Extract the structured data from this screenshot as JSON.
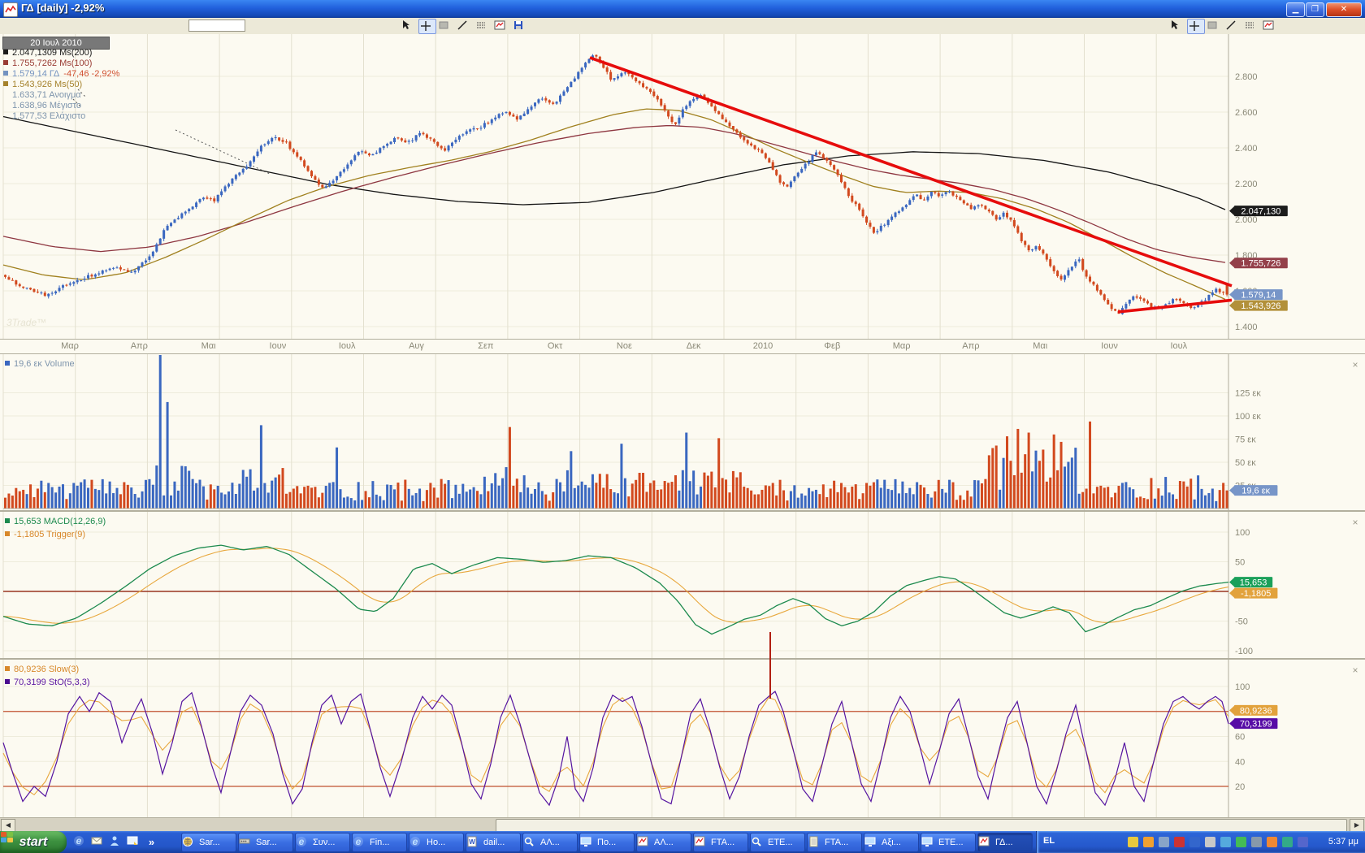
{
  "window": {
    "title": "ΓΔ [daily] -2,92%"
  },
  "toolbar": {
    "symbol_value": "",
    "tools_center": [
      "pointer",
      "crosshair",
      "region-select",
      "trendline",
      "horizontal-lines",
      "chart-window",
      "save"
    ],
    "tools_right": [
      "pointer",
      "crosshair",
      "region-select",
      "trendline",
      "horizontal-lines",
      "chart-window"
    ],
    "selected_tool": "crosshair"
  },
  "price_panel": {
    "date_tooltip": "20 Ιουλ 2010",
    "watermark": "3Trade™",
    "legend": [
      {
        "value": "2.047,1309",
        "label": "Ms(200)",
        "color": "#1c1c1c",
        "marker": "#1c1c1c"
      },
      {
        "value": "1.755,7262",
        "label": "Ms(100)",
        "color": "#9a3c34",
        "marker": "#9a3c34"
      },
      {
        "value": "1.579,14",
        "label": "ΓΔ",
        "change": "-47,46 -2,92%",
        "color": "#7493c0",
        "change_color": "#d05030",
        "marker": "#7493c0"
      },
      {
        "value": "1.543,926",
        "label": "Ms(50)",
        "color": "#a5822c",
        "marker": "#a5822c"
      },
      {
        "value": "1.633,71",
        "label": "Ανοιγμα",
        "color": "#7d94ac",
        "marker": ""
      },
      {
        "value": "1.638,96",
        "label": "Μέγιστο",
        "color": "#7d94ac",
        "marker": ""
      },
      {
        "value": "1.577,53",
        "label": "Ελάχιστο",
        "color": "#7d94ac",
        "marker": ""
      }
    ],
    "axis_labels": [
      "2.800",
      "2.600",
      "2.400",
      "2.200",
      "2.000",
      "1.800",
      "1.600",
      "1.400"
    ],
    "axis_values": [
      2800,
      2600,
      2400,
      2200,
      2000,
      1800,
      1600,
      1400
    ],
    "tags": [
      {
        "text": "2.047,130",
        "bg": "#1c1c1c",
        "v": 2047.13
      },
      {
        "text": "1.755,726",
        "bg": "#94404a",
        "v": 1755.73
      },
      {
        "text": "1.579,14",
        "bg": "#7795c8",
        "v": 1579.14
      },
      {
        "text": "1.543,926",
        "bg": "#b2903a",
        "v": 1543.93
      }
    ]
  },
  "volume_panel": {
    "legend": "19,6 εκ Volume",
    "legend_color": "#7d94ac",
    "legend_marker": "#3a67c0",
    "axis_labels": [
      "125 εκ",
      "100 εκ",
      "75 εκ",
      "50 εκ",
      "25 εκ"
    ],
    "axis_values": [
      125,
      100,
      75,
      50,
      25
    ],
    "tag": {
      "text": "19,6 εκ",
      "bg": "#7795c8",
      "v": 19.6
    }
  },
  "macd_panel": {
    "legend1": {
      "text": "15,653 MACD(12,26,9)",
      "color": "#1d8a4e",
      "marker": "#1d8a4e"
    },
    "legend2": {
      "text": "-1,1805 Trigger(9)",
      "color": "#d8882a",
      "marker": "#d8882a"
    },
    "axis_labels": [
      "100",
      "50",
      "-50",
      "-100"
    ],
    "axis_values": [
      100,
      50,
      -50,
      -100
    ],
    "tags": [
      {
        "text": "15,653",
        "bg": "#1aa05a",
        "v": 15.653
      },
      {
        "text": "-1,1805",
        "bg": "#e2a23c",
        "v": -1.1805
      }
    ]
  },
  "stoch_panel": {
    "legend1": {
      "text": "80,9236 Slow(3)",
      "color": "#d8882a",
      "marker": "#d8882a"
    },
    "legend2": {
      "text": "70,3199 StO(5,3,3)",
      "color": "#5a14a0",
      "marker": "#4a0c90"
    },
    "axis_labels": [
      "100",
      "60",
      "40",
      "20"
    ],
    "axis_values": [
      100,
      60,
      40,
      20
    ],
    "levels": [
      80,
      20
    ],
    "tags": [
      {
        "text": "80,9236",
        "bg": "#e2a23c",
        "v": 80.9236
      },
      {
        "text": "70,3199",
        "bg": "#570ca6",
        "v": 70.3199
      }
    ]
  },
  "chart_data": {
    "type": "candlestick+volume+macd+stochastic",
    "x_axis_months": [
      "Μαρ",
      "Απρ",
      "Μαι",
      "Ιουν",
      "Ιουλ",
      "Αυγ",
      "Σεπ",
      "Οκτ",
      "Νοε",
      "Δεκ",
      "2010",
      "Φεβ",
      "Μαρ",
      "Απρ",
      "Μαι",
      "Ιουν",
      "Ιουλ"
    ],
    "price": {
      "ylim": [
        1400,
        2950
      ],
      "grid_step": 200,
      "last": {
        "close": 1579.14,
        "open": 1633.71,
        "high": 1638.96,
        "low": 1577.53,
        "change": -47.46,
        "change_pct": -2.92,
        "ma200": 2047.1309,
        "ma100": 1755.7262,
        "ma50": 1543.926
      },
      "close_path": [
        0,
        1690,
        25,
        1620,
        55,
        1575,
        85,
        1645,
        110,
        1685,
        140,
        1730,
        162,
        1705,
        185,
        1810,
        202,
        1950,
        218,
        2010,
        232,
        2060,
        248,
        2120,
        262,
        2105,
        276,
        2180,
        290,
        2255,
        305,
        2310,
        320,
        2405,
        335,
        2465,
        350,
        2430,
        365,
        2350,
        380,
        2250,
        395,
        2175,
        410,
        2225,
        425,
        2305,
        440,
        2385,
        455,
        2350,
        470,
        2405,
        485,
        2455,
        500,
        2425,
        515,
        2480,
        530,
        2445,
        545,
        2385,
        560,
        2445,
        575,
        2505,
        590,
        2515,
        605,
        2565,
        620,
        2600,
        635,
        2560,
        650,
        2625,
        665,
        2685,
        680,
        2645,
        695,
        2725,
        710,
        2815,
        722,
        2895,
        730,
        2920,
        740,
        2855,
        752,
        2775,
        768,
        2825,
        785,
        2765,
        800,
        2705,
        815,
        2625,
        828,
        2525,
        845,
        2655,
        860,
        2700,
        875,
        2625,
        890,
        2555,
        905,
        2485,
        920,
        2425,
        935,
        2375,
        948,
        2295,
        958,
        2205,
        968,
        2185,
        980,
        2255,
        992,
        2315,
        1002,
        2375,
        1012,
        2345,
        1025,
        2285,
        1035,
        2205,
        1045,
        2105,
        1055,
        2065,
        1065,
        1985,
        1075,
        1925,
        1085,
        1965,
        1095,
        2015,
        1105,
        2045,
        1115,
        2085,
        1125,
        2145,
        1135,
        2105,
        1145,
        2155,
        1155,
        2135,
        1165,
        2165,
        1175,
        2125,
        1185,
        2085,
        1195,
        2055,
        1205,
        2085,
        1215,
        2045,
        1225,
        1995,
        1235,
        2035,
        1245,
        1975,
        1255,
        1885,
        1265,
        1825,
        1275,
        1855,
        1285,
        1785,
        1295,
        1705,
        1305,
        1665,
        1315,
        1725,
        1325,
        1785,
        1335,
        1685,
        1345,
        1625,
        1355,
        1565,
        1365,
        1505,
        1375,
        1475,
        1385,
        1535,
        1395,
        1575,
        1405,
        1555,
        1415,
        1515,
        1425,
        1495,
        1435,
        1525,
        1445,
        1555,
        1455,
        1535,
        1465,
        1495,
        1475,
        1525,
        1485,
        1565,
        1495,
        1605,
        1508,
        1579
      ],
      "ma200": [
        0,
        2575,
        100,
        2480,
        200,
        2385,
        300,
        2290,
        400,
        2195,
        480,
        2140,
        560,
        2100,
        640,
        2082,
        720,
        2095,
        800,
        2150,
        880,
        2230,
        960,
        2305,
        1040,
        2355,
        1120,
        2378,
        1200,
        2368,
        1280,
        2330,
        1360,
        2265,
        1430,
        2180,
        1470,
        2120,
        1508,
        2047
      ],
      "ma100": [
        0,
        1905,
        60,
        1848,
        120,
        1820,
        180,
        1845,
        240,
        1905,
        300,
        1985,
        360,
        2075,
        420,
        2160,
        480,
        2235,
        540,
        2305,
        600,
        2370,
        660,
        2430,
        720,
        2480,
        780,
        2515,
        820,
        2525,
        860,
        2515,
        900,
        2480,
        940,
        2430,
        980,
        2380,
        1020,
        2330,
        1060,
        2285,
        1100,
        2250,
        1140,
        2225,
        1180,
        2200,
        1220,
        2165,
        1260,
        2115,
        1300,
        2050,
        1340,
        1975,
        1380,
        1895,
        1420,
        1830,
        1460,
        1790,
        1508,
        1756
      ],
      "ma50": [
        0,
        1745,
        50,
        1688,
        100,
        1662,
        150,
        1700,
        200,
        1788,
        250,
        1890,
        300,
        2000,
        350,
        2105,
        400,
        2185,
        450,
        2245,
        500,
        2290,
        550,
        2330,
        600,
        2380,
        650,
        2445,
        700,
        2520,
        750,
        2585,
        790,
        2618,
        830,
        2610,
        870,
        2560,
        910,
        2480,
        950,
        2395,
        990,
        2320,
        1030,
        2250,
        1070,
        2185,
        1110,
        2150,
        1150,
        2158,
        1190,
        2150,
        1230,
        2115,
        1270,
        2060,
        1310,
        1985,
        1350,
        1890,
        1390,
        1790,
        1430,
        1700,
        1470,
        1622,
        1508,
        1544
      ],
      "trendlines": [
        [
          722,
          2905,
          1512,
          1628
        ],
        [
          1372,
          1482,
          1512,
          1548
        ]
      ]
    },
    "volume": {
      "unit": "εκ",
      "ylim": [
        0,
        170
      ],
      "grid": [
        25,
        50,
        75,
        100,
        125
      ],
      "last": 19.6,
      "spikes": [
        197,
        168,
        206,
        115,
        322,
        90,
        412,
        66,
        624,
        88,
        702,
        62,
        762,
        70,
        842,
        82,
        884,
        76,
        1226,
        68,
        1240,
        78,
        1252,
        86,
        1264,
        82,
        1294,
        80,
        1306,
        72,
        1338,
        94
      ],
      "zones": [
        [
          180,
          232,
          1.5
        ],
        [
          290,
          350,
          1.4
        ],
        [
          590,
          650,
          1.4
        ],
        [
          690,
          910,
          1.3
        ],
        [
          1215,
          1325,
          2.1
        ],
        [
          1410,
          1475,
          1.15
        ]
      ]
    },
    "macd": {
      "params": "12,26,9",
      "ylim": [
        -110,
        110
      ],
      "grid": [
        100,
        50,
        -50,
        -100
      ],
      "last": 15.653,
      "trigger_last": -1.1805,
      "line": [
        0,
        -42,
        30,
        -55,
        60,
        -58,
        90,
        -45,
        120,
        -20,
        150,
        8,
        180,
        38,
        210,
        60,
        240,
        73,
        268,
        78,
        295,
        70,
        325,
        76,
        352,
        62,
        380,
        34,
        410,
        4,
        438,
        -30,
        458,
        -34,
        480,
        -12,
        505,
        38,
        528,
        47,
        552,
        30,
        578,
        44,
        608,
        57,
        640,
        54,
        665,
        49,
        692,
        52,
        720,
        60,
        748,
        57,
        778,
        40,
        808,
        14,
        830,
        -16,
        852,
        -56,
        872,
        -72,
        892,
        -60,
        912,
        -47,
        932,
        -40,
        952,
        -24,
        972,
        -12,
        992,
        -22,
        1012,
        -46,
        1032,
        -58,
        1052,
        -50,
        1072,
        -34,
        1092,
        -8,
        1112,
        10,
        1132,
        18,
        1152,
        25,
        1172,
        21,
        1192,
        4,
        1212,
        -16,
        1232,
        -36,
        1252,
        -45,
        1272,
        -37,
        1292,
        -26,
        1312,
        -36,
        1332,
        -68,
        1352,
        -58,
        1372,
        -44,
        1392,
        -31,
        1412,
        -24,
        1432,
        -11,
        1452,
        1,
        1472,
        9,
        1492,
        13,
        1508,
        15.6
      ]
    },
    "stoch": {
      "params": "5,3,3",
      "slow_param": "3",
      "ylim": [
        0,
        100
      ],
      "levels": [
        80,
        20
      ],
      "last": 70.3199,
      "slow_last": 80.9236,
      "line": [
        0,
        55,
        12,
        30,
        24,
        8,
        38,
        20,
        52,
        12,
        66,
        40,
        80,
        78,
        94,
        92,
        106,
        80,
        118,
        95,
        132,
        88,
        146,
        55,
        158,
        75,
        170,
        90,
        184,
        62,
        196,
        30,
        208,
        55,
        220,
        88,
        232,
        95,
        244,
        68,
        256,
        38,
        268,
        15,
        280,
        48,
        292,
        80,
        304,
        93,
        318,
        85,
        332,
        62,
        344,
        30,
        356,
        6,
        368,
        18,
        380,
        55,
        392,
        85,
        404,
        93,
        416,
        70,
        428,
        88,
        440,
        94,
        452,
        65,
        464,
        35,
        476,
        12,
        490,
        40,
        504,
        75,
        516,
        92,
        528,
        82,
        540,
        93,
        552,
        85,
        564,
        55,
        576,
        22,
        588,
        10,
        600,
        38,
        612,
        75,
        624,
        93,
        636,
        70,
        648,
        42,
        660,
        15,
        672,
        5,
        684,
        28,
        694,
        60,
        704,
        18,
        714,
        8,
        726,
        35,
        738,
        75,
        750,
        93,
        762,
        88,
        774,
        92,
        786,
        68,
        798,
        38,
        810,
        10,
        822,
        6,
        834,
        42,
        846,
        78,
        858,
        90,
        870,
        65,
        882,
        35,
        894,
        10,
        906,
        28,
        918,
        60,
        930,
        85,
        942,
        92,
        950,
        96,
        960,
        80,
        972,
        50,
        984,
        18,
        996,
        8,
        1008,
        38,
        1020,
        70,
        1032,
        88,
        1044,
        55,
        1056,
        22,
        1068,
        8,
        1080,
        40,
        1092,
        75,
        1104,
        92,
        1116,
        80,
        1128,
        52,
        1140,
        22,
        1152,
        48,
        1164,
        78,
        1176,
        90,
        1188,
        60,
        1200,
        28,
        1212,
        10,
        1224,
        45,
        1236,
        75,
        1248,
        88,
        1260,
        55,
        1272,
        20,
        1284,
        6,
        1296,
        32,
        1308,
        62,
        1320,
        85,
        1332,
        50,
        1344,
        15,
        1356,
        5,
        1368,
        25,
        1380,
        55,
        1392,
        20,
        1404,
        8,
        1416,
        40,
        1428,
        70,
        1440,
        88,
        1452,
        92,
        1462,
        86,
        1472,
        82,
        1482,
        88,
        1492,
        92,
        1500,
        88,
        1508,
        70
      ]
    }
  },
  "taskbar": {
    "start_label": "start",
    "lang": "EL",
    "time": "5:37 μμ",
    "quick_launch": [
      "ie-icon",
      "mail-icon",
      "messenger-icon",
      "show-desktop-icon"
    ],
    "chevron": "»",
    "tasks": [
      {
        "label": "Sar...",
        "icon": "globe-icon",
        "active": false
      },
      {
        "label": "Sar...",
        "icon": "toolbar-icon",
        "active": false
      },
      {
        "label": "Συν...",
        "icon": "ie-icon",
        "active": false
      },
      {
        "label": "Fin...",
        "icon": "ie-icon",
        "active": false
      },
      {
        "label": "Ho...",
        "icon": "ie-icon",
        "active": false
      },
      {
        "label": "dail...",
        "icon": "word-icon",
        "active": false
      },
      {
        "label": "ΑΛ...",
        "icon": "search-icon",
        "active": false
      },
      {
        "label": "Πο...",
        "icon": "monitor-icon",
        "active": false
      },
      {
        "label": "ΑΛ...",
        "icon": "chart-icon",
        "active": false
      },
      {
        "label": "FTA...",
        "icon": "chart-icon",
        "active": false
      },
      {
        "label": "ΕΤΕ...",
        "icon": "search-icon",
        "active": false
      },
      {
        "label": "FTA...",
        "icon": "notes-icon",
        "active": false
      },
      {
        "label": "Αξι...",
        "icon": "monitor-icon",
        "active": false
      },
      {
        "label": "ΕΤΕ...",
        "icon": "monitor-icon",
        "active": false
      },
      {
        "label": "ΓΔ...",
        "icon": "chart-icon",
        "active": true
      }
    ],
    "tray_icons": [
      {
        "name": "tray-shield-icon",
        "color": "#e8c93e"
      },
      {
        "name": "tray-update-icon",
        "color": "#f0a030"
      },
      {
        "name": "tray-network-icon",
        "color": "#88a4c8"
      },
      {
        "name": "tray-antivirus-icon",
        "color": "#cc3333"
      },
      {
        "name": "tray-app-blue-icon",
        "color": "#3366cc"
      },
      {
        "name": "tray-speaker-icon",
        "color": "#c8c8c8"
      },
      {
        "name": "tray-monitor-icon",
        "color": "#55aadd"
      },
      {
        "name": "tray-msg-icon",
        "color": "#44bb55"
      },
      {
        "name": "tray-tool-icon",
        "color": "#8899aa"
      },
      {
        "name": "tray-app-orange-icon",
        "color": "#ee8833"
      },
      {
        "name": "tray-app-teal-icon",
        "color": "#33aa88"
      },
      {
        "name": "tray-app-indigo-icon",
        "color": "#5566cc"
      }
    ]
  }
}
